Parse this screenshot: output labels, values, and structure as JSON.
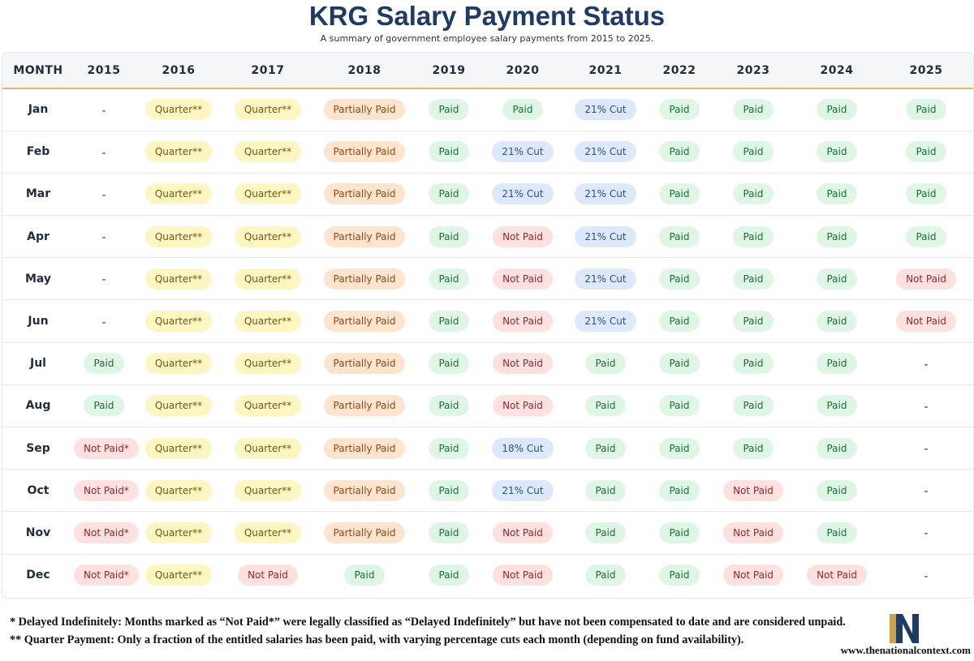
{
  "title": "KRG Salary Payment Status",
  "subtitle": "A summary of government employee salary payments from 2015 to 2025.",
  "status_colors": {
    "Paid": {
      "bg": "#dff6e6",
      "fg": "#1f6b3a"
    },
    "Quarter**": {
      "bg": "#fdf5c2",
      "fg": "#6b5a14"
    },
    "Partially Paid": {
      "bg": "#fde4cf",
      "fg": "#8a4a1a"
    },
    "Not Paid": {
      "bg": "#fde0e0",
      "fg": "#8e2a2a"
    },
    "Not Paid*": {
      "bg": "#fde0e0",
      "fg": "#8e2a2a"
    },
    "21% Cut": {
      "bg": "#dde9fb",
      "fg": "#2c4f86"
    },
    "18% Cut": {
      "bg": "#dde9fb",
      "fg": "#2c4f86"
    },
    "-": {
      "bg": "transparent",
      "fg": "#333333"
    }
  },
  "chart_data": {
    "type": "table",
    "header": [
      "MONTH",
      "2015",
      "2016",
      "2017",
      "2018",
      "2019",
      "2020",
      "2021",
      "2022",
      "2023",
      "2024",
      "2025"
    ],
    "rows": [
      {
        "month": "Jan",
        "cells": [
          "-",
          "Quarter**",
          "Quarter**",
          "Partially Paid",
          "Paid",
          "Paid",
          "21% Cut",
          "Paid",
          "Paid",
          "Paid",
          "Paid"
        ]
      },
      {
        "month": "Feb",
        "cells": [
          "-",
          "Quarter**",
          "Quarter**",
          "Partially Paid",
          "Paid",
          "21% Cut",
          "21% Cut",
          "Paid",
          "Paid",
          "Paid",
          "Paid"
        ]
      },
      {
        "month": "Mar",
        "cells": [
          "-",
          "Quarter**",
          "Quarter**",
          "Partially Paid",
          "Paid",
          "21% Cut",
          "21% Cut",
          "Paid",
          "Paid",
          "Paid",
          "Paid"
        ]
      },
      {
        "month": "Apr",
        "cells": [
          "-",
          "Quarter**",
          "Quarter**",
          "Partially Paid",
          "Paid",
          "Not Paid",
          "21% Cut",
          "Paid",
          "Paid",
          "Paid",
          "Paid"
        ]
      },
      {
        "month": "May",
        "cells": [
          "-",
          "Quarter**",
          "Quarter**",
          "Partially Paid",
          "Paid",
          "Not Paid",
          "21% Cut",
          "Paid",
          "Paid",
          "Paid",
          "Not Paid"
        ]
      },
      {
        "month": "Jun",
        "cells": [
          "-",
          "Quarter**",
          "Quarter**",
          "Partially Paid",
          "Paid",
          "Not Paid",
          "21% Cut",
          "Paid",
          "Paid",
          "Paid",
          "Not Paid"
        ]
      },
      {
        "month": "Jul",
        "cells": [
          "Paid",
          "Quarter**",
          "Quarter**",
          "Partially Paid",
          "Paid",
          "Not Paid",
          "Paid",
          "Paid",
          "Paid",
          "Paid",
          "-"
        ]
      },
      {
        "month": "Aug",
        "cells": [
          "Paid",
          "Quarter**",
          "Quarter**",
          "Partially Paid",
          "Paid",
          "Not Paid",
          "Paid",
          "Paid",
          "Paid",
          "Paid",
          "-"
        ]
      },
      {
        "month": "Sep",
        "cells": [
          "Not Paid*",
          "Quarter**",
          "Quarter**",
          "Partially Paid",
          "Paid",
          "18% Cut",
          "Paid",
          "Paid",
          "Paid",
          "Paid",
          "-"
        ]
      },
      {
        "month": "Oct",
        "cells": [
          "Not Paid*",
          "Quarter**",
          "Quarter**",
          "Partially Paid",
          "Paid",
          "21% Cut",
          "Paid",
          "Paid",
          "Not Paid",
          "Paid",
          "-"
        ]
      },
      {
        "month": "Nov",
        "cells": [
          "Not Paid*",
          "Quarter**",
          "Quarter**",
          "Partially Paid",
          "Paid",
          "Not Paid",
          "Paid",
          "Paid",
          "Not Paid",
          "Paid",
          "-"
        ]
      },
      {
        "month": "Dec",
        "cells": [
          "Not Paid*",
          "Quarter**",
          "Not Paid",
          "Paid",
          "Paid",
          "Not Paid",
          "Paid",
          "Paid",
          "Not Paid",
          "Not Paid",
          "-"
        ]
      }
    ]
  },
  "footnotes": [
    "* Delayed Indefinitely: Months marked as “Not Paid*” were legally classified as “Delayed Indefinitely” but have not been compensated to date and are considered unpaid.",
    "** Quarter Payment: Only a fraction of the entitled salaries has been paid, with varying percentage cuts each month (depending on fund availability)."
  ],
  "logo": {
    "letter": "N",
    "navy": "#1f3b63",
    "gold": "#c9a24a",
    "icon": "national-context-logo"
  },
  "website": "www.thenationalcontext.com"
}
